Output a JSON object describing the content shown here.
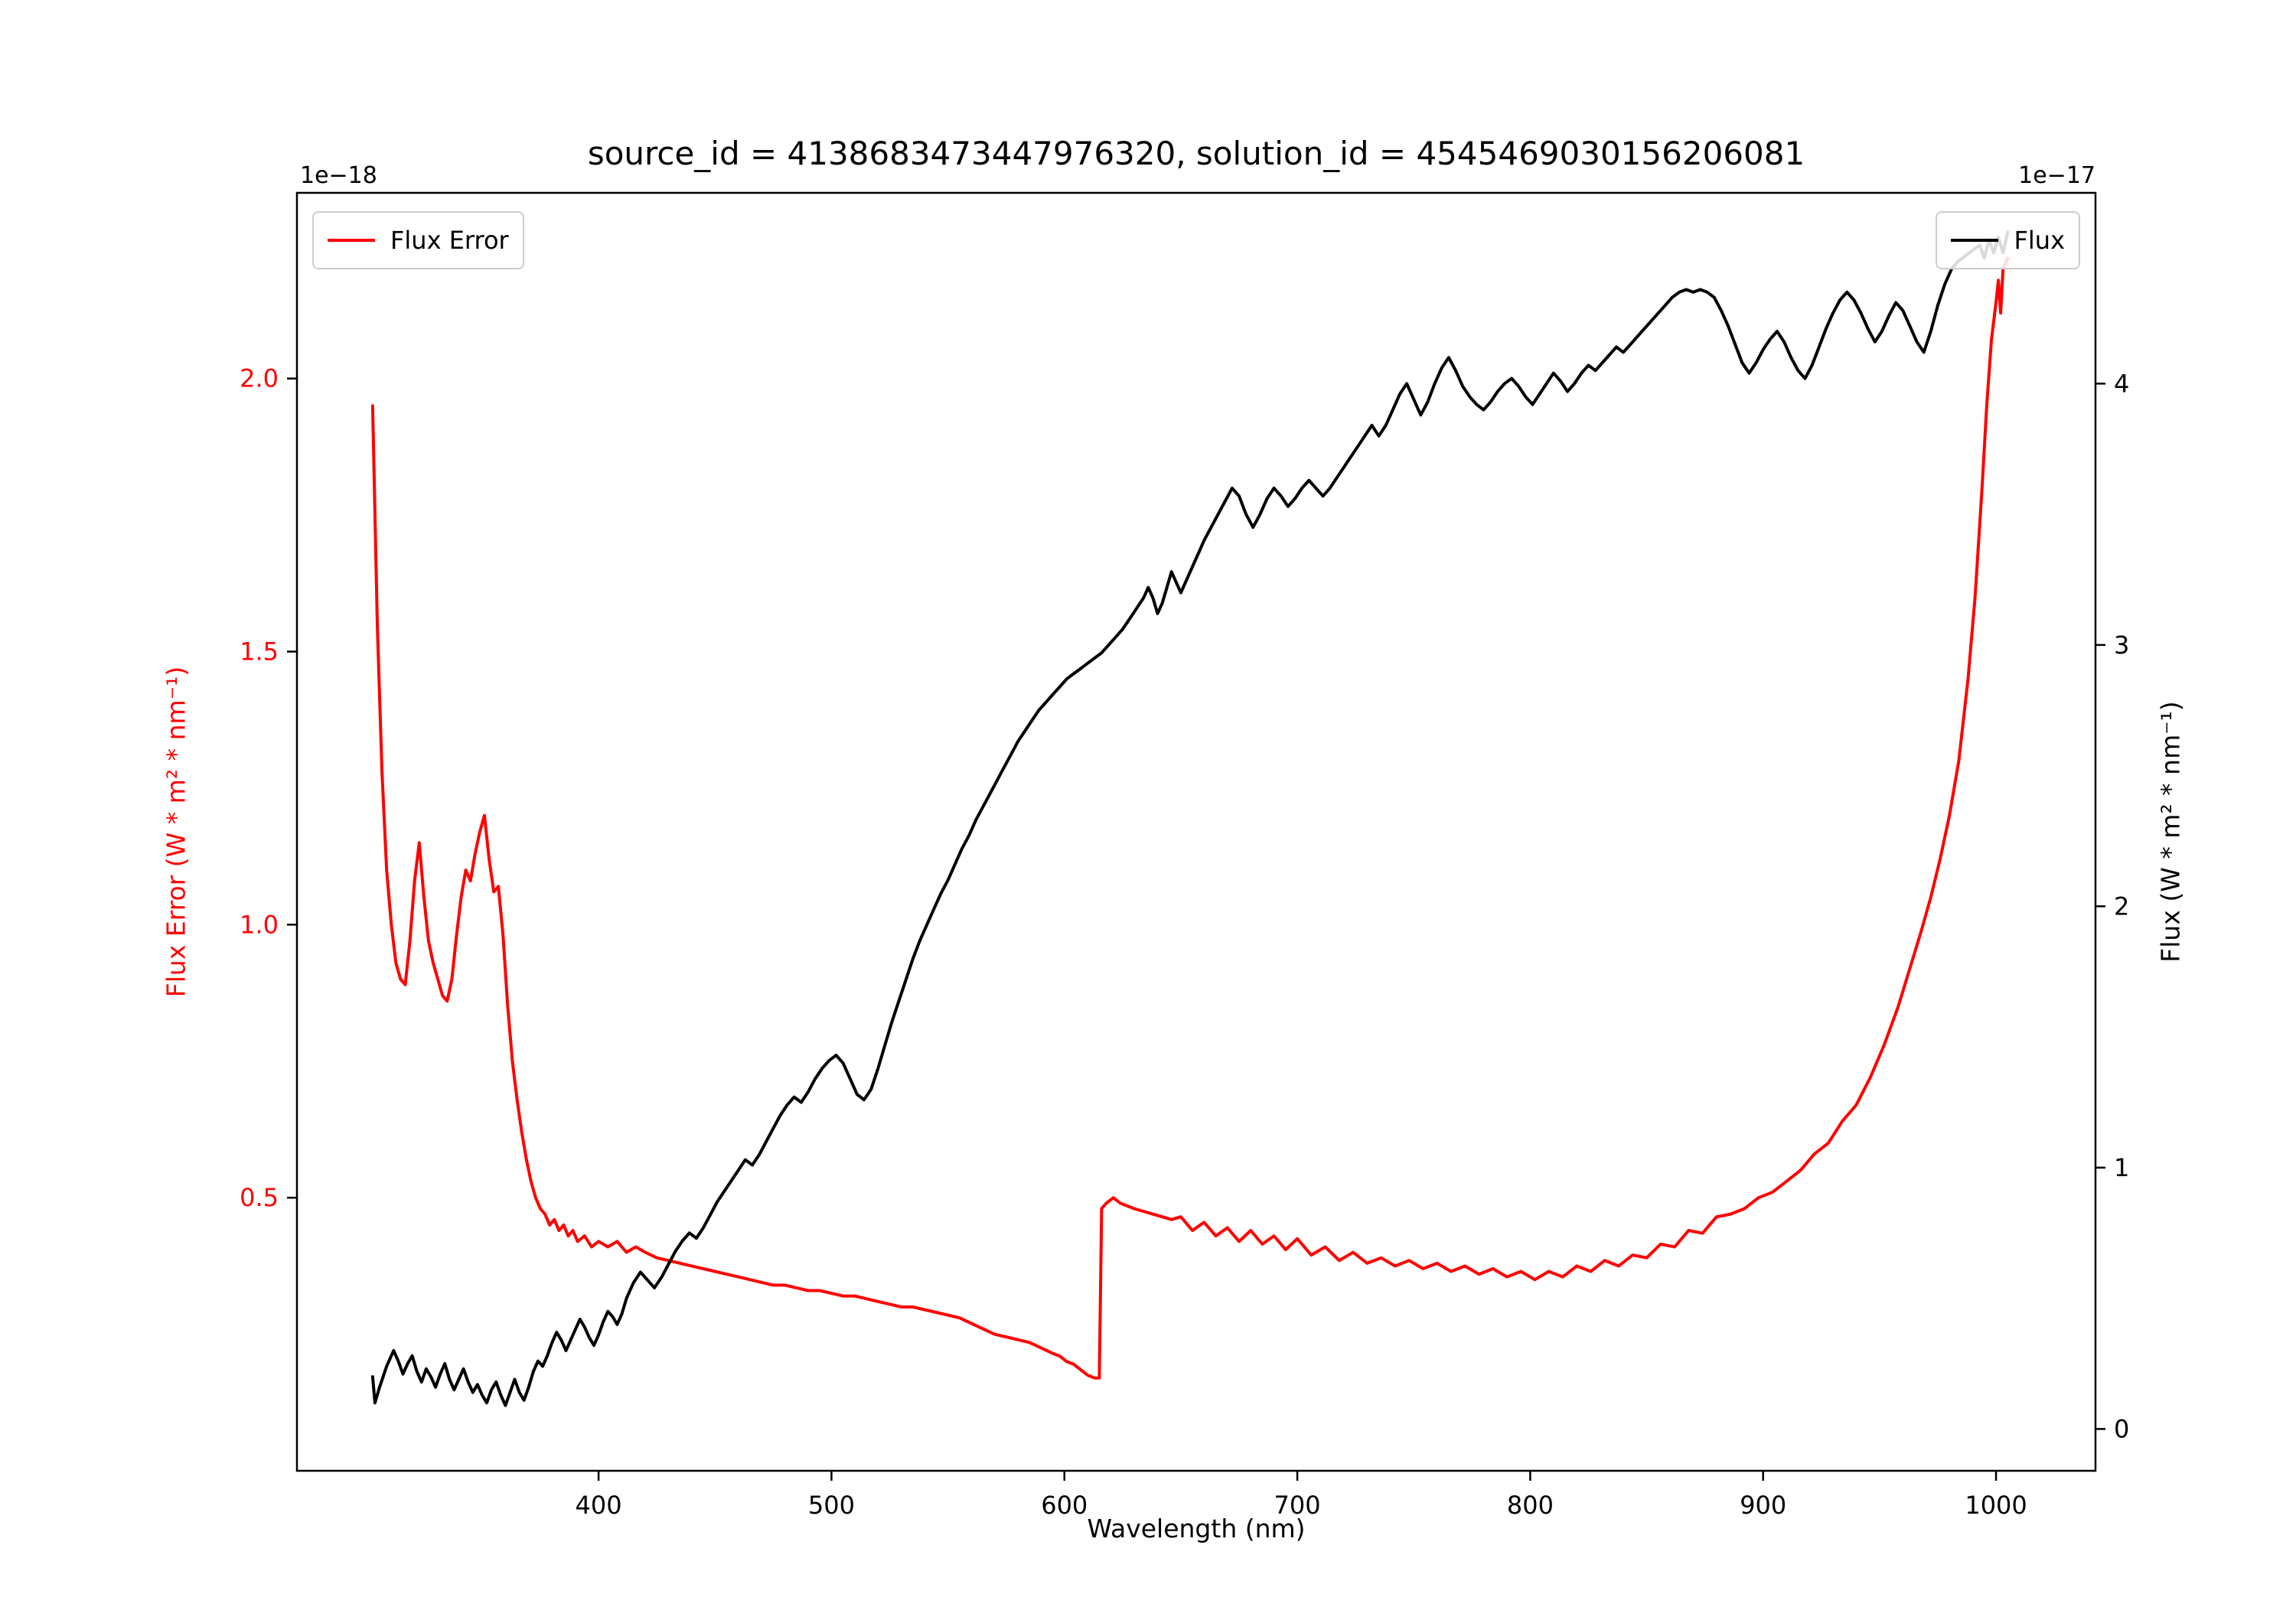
{
  "title": "source_id = 4138683473447976320, solution_id = 4545469030156206081",
  "axes": {
    "x": {
      "label": "Wavelength (nm)",
      "ticks": [
        400,
        500,
        600,
        700,
        800,
        900,
        1000
      ],
      "tick_labels": [
        "400",
        "500",
        "600",
        "700",
        "800",
        "900",
        "1000"
      ]
    },
    "y_left": {
      "label": "Flux Error (W * m² * nm⁻¹)",
      "offset_text": "1e−18",
      "ticks": [
        0.5,
        1.0,
        1.5,
        2.0
      ],
      "tick_labels": [
        "0.5",
        "1.0",
        "1.5",
        "2.0"
      ],
      "color": "#ff0000"
    },
    "y_right": {
      "label": "Flux (W * m² * nm⁻¹)",
      "offset_text": "1e−17",
      "ticks": [
        0,
        1,
        2,
        3,
        4
      ],
      "tick_labels": [
        "0",
        "1",
        "2",
        "3",
        "4"
      ],
      "color": "#000000"
    }
  },
  "legend_left": {
    "label": "Flux Error",
    "color": "#ff0000"
  },
  "legend_right": {
    "label": "Flux",
    "color": "#000000"
  },
  "chart_data": {
    "type": "line",
    "title": "source_id = 4138683473447976320, solution_id = 4545469030156206081",
    "xlabel": "Wavelength (nm)",
    "ylabel_left": "Flux Error (W * m² * nm⁻¹) ×1e−18",
    "ylabel_right": "Flux (W * m² * nm⁻¹) ×1e−17",
    "xlim": [
      270.5,
      1042.7
    ],
    "ylim_left": [
      0.0,
      2.34
    ],
    "ylim_right": [
      -0.16,
      4.73
    ],
    "grid": false,
    "legend_positions": [
      "upper left",
      "upper right"
    ],
    "series": [
      {
        "name": "Flux Error",
        "axis": "left",
        "color": "#ff0000",
        "scale": "1e-18",
        "x": [
          303,
          305,
          307,
          309,
          311,
          313,
          315,
          317,
          319,
          321,
          323,
          325,
          327,
          329,
          331,
          333,
          335,
          337,
          339,
          341,
          343,
          345,
          347,
          349,
          351,
          353,
          355,
          357,
          359,
          361,
          363,
          365,
          367,
          369,
          371,
          373,
          375,
          377,
          379,
          381,
          383,
          385,
          387,
          389,
          391,
          394,
          397,
          400,
          404,
          408,
          412,
          416,
          420,
          425,
          430,
          435,
          440,
          445,
          450,
          455,
          460,
          465,
          470,
          475,
          480,
          485,
          490,
          495,
          500,
          505,
          510,
          515,
          520,
          525,
          530,
          535,
          540,
          545,
          550,
          555,
          560,
          565,
          570,
          575,
          580,
          585,
          590,
          595,
          598,
          601,
          604,
          607,
          610,
          613,
          615,
          616,
          618,
          621,
          624,
          627,
          630,
          634,
          638,
          642,
          646,
          650,
          655,
          660,
          665,
          670,
          675,
          680,
          685,
          690,
          695,
          700,
          706,
          712,
          718,
          724,
          730,
          736,
          742,
          748,
          754,
          760,
          766,
          772,
          778,
          784,
          790,
          796,
          802,
          808,
          814,
          820,
          826,
          832,
          838,
          844,
          850,
          856,
          862,
          868,
          874,
          880,
          886,
          892,
          898,
          904,
          910,
          916,
          922,
          928,
          934,
          940,
          946,
          952,
          958,
          963,
          968,
          972,
          976,
          980,
          984,
          988,
          991,
          994,
          996,
          998,
          1000,
          1001,
          1002,
          1003,
          1005
        ],
        "y": [
          1.95,
          1.55,
          1.28,
          1.1,
          1.0,
          0.93,
          0.9,
          0.89,
          0.97,
          1.08,
          1.15,
          1.05,
          0.97,
          0.93,
          0.9,
          0.87,
          0.86,
          0.9,
          0.98,
          1.05,
          1.1,
          1.08,
          1.13,
          1.17,
          1.2,
          1.12,
          1.06,
          1.07,
          0.98,
          0.85,
          0.75,
          0.68,
          0.62,
          0.57,
          0.53,
          0.5,
          0.48,
          0.47,
          0.45,
          0.46,
          0.44,
          0.45,
          0.43,
          0.44,
          0.42,
          0.43,
          0.41,
          0.42,
          0.41,
          0.42,
          0.4,
          0.41,
          0.4,
          0.39,
          0.385,
          0.38,
          0.375,
          0.37,
          0.365,
          0.36,
          0.355,
          0.35,
          0.345,
          0.34,
          0.34,
          0.335,
          0.33,
          0.33,
          0.325,
          0.32,
          0.32,
          0.315,
          0.31,
          0.305,
          0.3,
          0.3,
          0.295,
          0.29,
          0.285,
          0.28,
          0.27,
          0.26,
          0.25,
          0.245,
          0.24,
          0.235,
          0.225,
          0.215,
          0.21,
          0.2,
          0.195,
          0.185,
          0.175,
          0.17,
          0.17,
          0.48,
          0.49,
          0.5,
          0.49,
          0.485,
          0.48,
          0.475,
          0.47,
          0.465,
          0.46,
          0.465,
          0.44,
          0.455,
          0.43,
          0.445,
          0.42,
          0.44,
          0.415,
          0.43,
          0.405,
          0.425,
          0.395,
          0.41,
          0.385,
          0.4,
          0.38,
          0.39,
          0.375,
          0.385,
          0.37,
          0.38,
          0.365,
          0.375,
          0.36,
          0.37,
          0.355,
          0.365,
          0.35,
          0.365,
          0.355,
          0.375,
          0.365,
          0.385,
          0.375,
          0.395,
          0.39,
          0.415,
          0.41,
          0.44,
          0.435,
          0.465,
          0.47,
          0.48,
          0.5,
          0.51,
          0.53,
          0.55,
          0.58,
          0.6,
          0.64,
          0.67,
          0.72,
          0.78,
          0.85,
          0.92,
          0.99,
          1.05,
          1.12,
          1.2,
          1.3,
          1.45,
          1.6,
          1.8,
          1.95,
          2.07,
          2.14,
          2.18,
          2.12,
          2.2,
          2.22
        ]
      },
      {
        "name": "Flux",
        "axis": "right",
        "color": "#000000",
        "scale": "1e-17",
        "x": [
          303,
          304,
          306,
          309,
          312,
          314,
          316,
          318,
          320,
          322,
          324,
          326,
          328,
          330,
          332,
          334,
          336,
          338,
          340,
          342,
          344,
          346,
          348,
          350,
          352,
          354,
          356,
          358,
          360,
          362,
          364,
          366,
          368,
          370,
          372,
          374,
          376,
          378,
          380,
          382,
          384,
          386,
          388,
          390,
          392,
          394,
          396,
          398,
          400,
          402,
          404,
          406,
          408,
          410,
          412,
          415,
          418,
          421,
          424,
          427,
          430,
          433,
          436,
          439,
          442,
          445,
          448,
          451,
          454,
          457,
          460,
          463,
          466,
          469,
          472,
          475,
          478,
          481,
          484,
          487,
          490,
          493,
          496,
          499,
          502,
          505,
          508,
          511,
          514,
          517,
          520,
          523,
          526,
          529,
          532,
          535,
          538,
          541,
          544,
          547,
          550,
          553,
          556,
          559,
          562,
          565,
          568,
          571,
          574,
          577,
          580,
          583,
          586,
          589,
          592,
          595,
          598,
          601,
          604,
          607,
          610,
          613,
          616,
          619,
          622,
          625,
          628,
          631,
          634,
          636,
          638,
          640,
          642,
          644,
          646,
          648,
          650,
          652,
          654,
          656,
          658,
          660,
          663,
          666,
          669,
          672,
          675,
          678,
          681,
          684,
          687,
          690,
          693,
          696,
          699,
          702,
          705,
          708,
          711,
          714,
          717,
          720,
          723,
          726,
          729,
          732,
          735,
          738,
          741,
          744,
          747,
          750,
          753,
          756,
          759,
          762,
          765,
          768,
          771,
          774,
          777,
          780,
          783,
          786,
          789,
          792,
          795,
          798,
          801,
          804,
          807,
          810,
          813,
          816,
          819,
          822,
          825,
          828,
          831,
          834,
          837,
          840,
          843,
          846,
          849,
          852,
          855,
          858,
          861,
          864,
          867,
          870,
          873,
          876,
          879,
          882,
          885,
          888,
          891,
          894,
          897,
          900,
          903,
          906,
          909,
          912,
          915,
          918,
          921,
          924,
          927,
          930,
          933,
          936,
          939,
          942,
          945,
          948,
          951,
          954,
          957,
          960,
          963,
          966,
          969,
          972,
          975,
          978,
          981,
          984,
          987,
          990,
          993,
          995,
          997,
          999,
          1001,
          1003,
          1005
        ],
        "y": [
          0.2,
          0.1,
          0.16,
          0.24,
          0.3,
          0.26,
          0.21,
          0.25,
          0.28,
          0.22,
          0.18,
          0.23,
          0.2,
          0.16,
          0.21,
          0.25,
          0.19,
          0.15,
          0.19,
          0.23,
          0.18,
          0.14,
          0.17,
          0.13,
          0.1,
          0.15,
          0.18,
          0.13,
          0.09,
          0.14,
          0.19,
          0.14,
          0.11,
          0.16,
          0.22,
          0.26,
          0.24,
          0.28,
          0.33,
          0.37,
          0.34,
          0.3,
          0.34,
          0.38,
          0.42,
          0.39,
          0.35,
          0.32,
          0.36,
          0.41,
          0.45,
          0.43,
          0.4,
          0.44,
          0.5,
          0.56,
          0.6,
          0.57,
          0.54,
          0.58,
          0.63,
          0.68,
          0.72,
          0.75,
          0.73,
          0.77,
          0.82,
          0.87,
          0.91,
          0.95,
          0.99,
          1.03,
          1.01,
          1.05,
          1.1,
          1.15,
          1.2,
          1.24,
          1.27,
          1.25,
          1.29,
          1.34,
          1.38,
          1.41,
          1.43,
          1.4,
          1.34,
          1.28,
          1.26,
          1.3,
          1.38,
          1.47,
          1.56,
          1.64,
          1.72,
          1.8,
          1.87,
          1.93,
          1.99,
          2.05,
          2.1,
          2.16,
          2.22,
          2.27,
          2.33,
          2.38,
          2.43,
          2.48,
          2.53,
          2.58,
          2.63,
          2.67,
          2.71,
          2.75,
          2.78,
          2.81,
          2.84,
          2.87,
          2.89,
          2.91,
          2.93,
          2.95,
          2.97,
          3.0,
          3.03,
          3.06,
          3.1,
          3.14,
          3.18,
          3.22,
          3.18,
          3.12,
          3.16,
          3.22,
          3.28,
          3.24,
          3.2,
          3.24,
          3.28,
          3.32,
          3.36,
          3.4,
          3.45,
          3.5,
          3.55,
          3.6,
          3.57,
          3.5,
          3.45,
          3.5,
          3.56,
          3.6,
          3.57,
          3.53,
          3.56,
          3.6,
          3.63,
          3.6,
          3.57,
          3.6,
          3.64,
          3.68,
          3.72,
          3.76,
          3.8,
          3.84,
          3.8,
          3.84,
          3.9,
          3.96,
          4.0,
          3.94,
          3.88,
          3.93,
          4.0,
          4.06,
          4.1,
          4.05,
          3.99,
          3.95,
          3.92,
          3.9,
          3.93,
          3.97,
          4.0,
          4.02,
          3.99,
          3.95,
          3.92,
          3.96,
          4.0,
          4.04,
          4.01,
          3.97,
          4.0,
          4.04,
          4.07,
          4.05,
          4.08,
          4.11,
          4.14,
          4.12,
          4.15,
          4.18,
          4.21,
          4.24,
          4.27,
          4.3,
          4.33,
          4.35,
          4.36,
          4.35,
          4.36,
          4.35,
          4.33,
          4.28,
          4.22,
          4.15,
          4.08,
          4.04,
          4.08,
          4.13,
          4.17,
          4.2,
          4.16,
          4.1,
          4.05,
          4.02,
          4.07,
          4.14,
          4.21,
          4.27,
          4.32,
          4.35,
          4.32,
          4.27,
          4.21,
          4.16,
          4.2,
          4.26,
          4.31,
          4.28,
          4.22,
          4.16,
          4.12,
          4.2,
          4.3,
          4.38,
          4.44,
          4.47,
          4.49,
          4.51,
          4.53,
          4.48,
          4.55,
          4.5,
          4.56,
          4.5,
          4.58
        ]
      }
    ]
  }
}
